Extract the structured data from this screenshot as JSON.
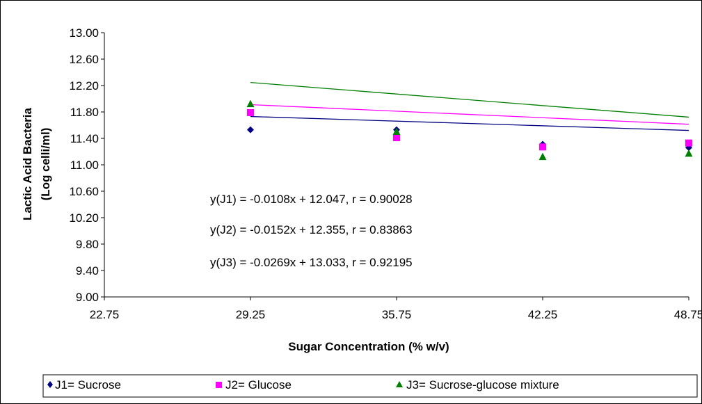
{
  "chart_data": {
    "type": "scatter",
    "xlabel": "Sugar Concentration (% w/v)",
    "ylabel_line1": "Lactic  Acid Bacteria",
    "ylabel_line2": "(Log celli/ml)",
    "xlim": [
      22.75,
      48.75
    ],
    "ylim": [
      9.0,
      13.0
    ],
    "x_ticks": [
      "22.75",
      "29.25",
      "35.75",
      "42.25",
      "48.75"
    ],
    "x_tick_values": [
      22.75,
      29.25,
      35.75,
      42.25,
      48.75
    ],
    "y_ticks": [
      "9.00",
      "9.40",
      "9.80",
      "10.20",
      "10.60",
      "11.00",
      "11.40",
      "11.80",
      "12.20",
      "12.60",
      "13.00"
    ],
    "y_tick_values": [
      9.0,
      9.4,
      9.8,
      10.2,
      10.6,
      11.0,
      11.4,
      11.8,
      12.2,
      12.6,
      13.0
    ],
    "grid": false,
    "legend_position": "bottom",
    "series": [
      {
        "name": "J1= Sucrose",
        "color": "#000080",
        "marker": "diamond",
        "x": [
          29.25,
          35.75,
          42.25,
          48.75
        ],
        "y": [
          11.53,
          11.53,
          11.31,
          11.26
        ],
        "fit": {
          "slope": -0.0108,
          "intercept": 12.047,
          "x_range": [
            29.25,
            48.75
          ]
        }
      },
      {
        "name": "J2= Glucose",
        "color": "#FF00FF",
        "marker": "square",
        "x": [
          29.25,
          35.75,
          42.25,
          48.75
        ],
        "y": [
          11.79,
          11.41,
          11.27,
          11.33
        ],
        "fit": {
          "slope": -0.0152,
          "intercept": 12.355,
          "x_range": [
            29.25,
            48.75
          ]
        }
      },
      {
        "name": "J3= Sucrose-glucose mixture",
        "color": "#008000",
        "marker": "triangle",
        "x": [
          29.25,
          35.75,
          42.25,
          48.75
        ],
        "y": [
          11.92,
          11.5,
          11.12,
          11.17
        ],
        "fit": {
          "slope": -0.0269,
          "intercept": 13.033,
          "x_range": [
            29.25,
            48.75
          ]
        }
      }
    ],
    "annotations": [
      "y(J1) = -0.0108x + 12.047, r = 0.90028",
      "y(J2) = -0.0152x + 12.355, r = 0.83863",
      "y(J3) = -0.0269x + 13.033, r = 0.92195"
    ]
  }
}
